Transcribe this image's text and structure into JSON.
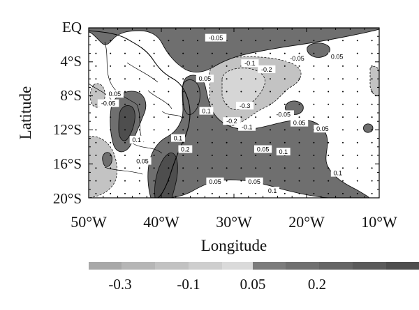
{
  "figure": {
    "xlabel": "Longitude",
    "ylabel": "Latitude",
    "x_ticks": [
      "50°W",
      "40°W",
      "30°W",
      "20°W",
      "10°W"
    ],
    "y_ticks": [
      "EQ",
      "4°S",
      "8°S",
      "12°S",
      "16°S",
      "20°S"
    ],
    "x_range": [
      -50,
      -10
    ],
    "y_range": [
      0,
      -20
    ]
  },
  "contour_labels": [
    {
      "text": "-0.05",
      "lon": -32.5,
      "lat": -1.2
    },
    {
      "text": "0.05",
      "lon": -34.0,
      "lat": -6.0
    },
    {
      "text": "-0.1",
      "lon": -27.8,
      "lat": -4.2
    },
    {
      "text": "-0.2",
      "lon": -25.5,
      "lat": -4.9
    },
    {
      "text": "-0.05",
      "lon": -21.3,
      "lat": -3.6
    },
    {
      "text": "0.05",
      "lon": -15.8,
      "lat": -3.4
    },
    {
      "text": "-0.3",
      "lon": -28.5,
      "lat": -9.2
    },
    {
      "text": "-0.2",
      "lon": -30.3,
      "lat": -11.0
    },
    {
      "text": "-0.1",
      "lon": -28.2,
      "lat": -11.7
    },
    {
      "text": "-0.05",
      "lon": -23.2,
      "lat": -10.2
    },
    {
      "text": "0.05",
      "lon": -21.0,
      "lat": -11.2
    },
    {
      "text": "0.05",
      "lon": -17.8,
      "lat": -11.9
    },
    {
      "text": "0.05",
      "lon": -46.4,
      "lat": -7.8
    },
    {
      "text": "-0.05",
      "lon": -47.3,
      "lat": -8.9
    },
    {
      "text": "0.1",
      "lon": -33.8,
      "lat": -9.8
    },
    {
      "text": "0.1",
      "lon": -43.4,
      "lat": -13.2
    },
    {
      "text": "0.1",
      "lon": -37.7,
      "lat": -13.0
    },
    {
      "text": "0.2",
      "lon": -36.7,
      "lat": -14.3
    },
    {
      "text": "0.05",
      "lon": -42.6,
      "lat": -15.7
    },
    {
      "text": "0.05",
      "lon": -26.0,
      "lat": -14.3
    },
    {
      "text": "0.1",
      "lon": -23.2,
      "lat": -14.6
    },
    {
      "text": "0.1",
      "lon": -15.7,
      "lat": -17.1
    },
    {
      "text": "0.05",
      "lon": -32.6,
      "lat": -18.1
    },
    {
      "text": "0.05",
      "lon": -27.2,
      "lat": -18.1
    },
    {
      "text": "0.1",
      "lon": -24.7,
      "lat": -19.2
    }
  ],
  "colorbar": {
    "neg_labels": [
      "-0.3",
      "-0.1"
    ],
    "pos_labels": [
      "0.05",
      "0.2"
    ],
    "neg_colors": [
      "#a8a8a8",
      "#b6b6b6",
      "#c2c2c2",
      "#cecece",
      "#dadada"
    ],
    "pos_colors": [
      "#7c7c7c",
      "#707070",
      "#656565",
      "#5a5a5a",
      "#4e4e4e"
    ]
  },
  "colors": {
    "pos_fill": "#6f6f6f",
    "pos_fill_dark": "#4e4e4e",
    "neg_fill": "#c3c3c3",
    "neg_fill_light": "#d6d6d6",
    "line": "#111111",
    "frame": "#000000"
  }
}
